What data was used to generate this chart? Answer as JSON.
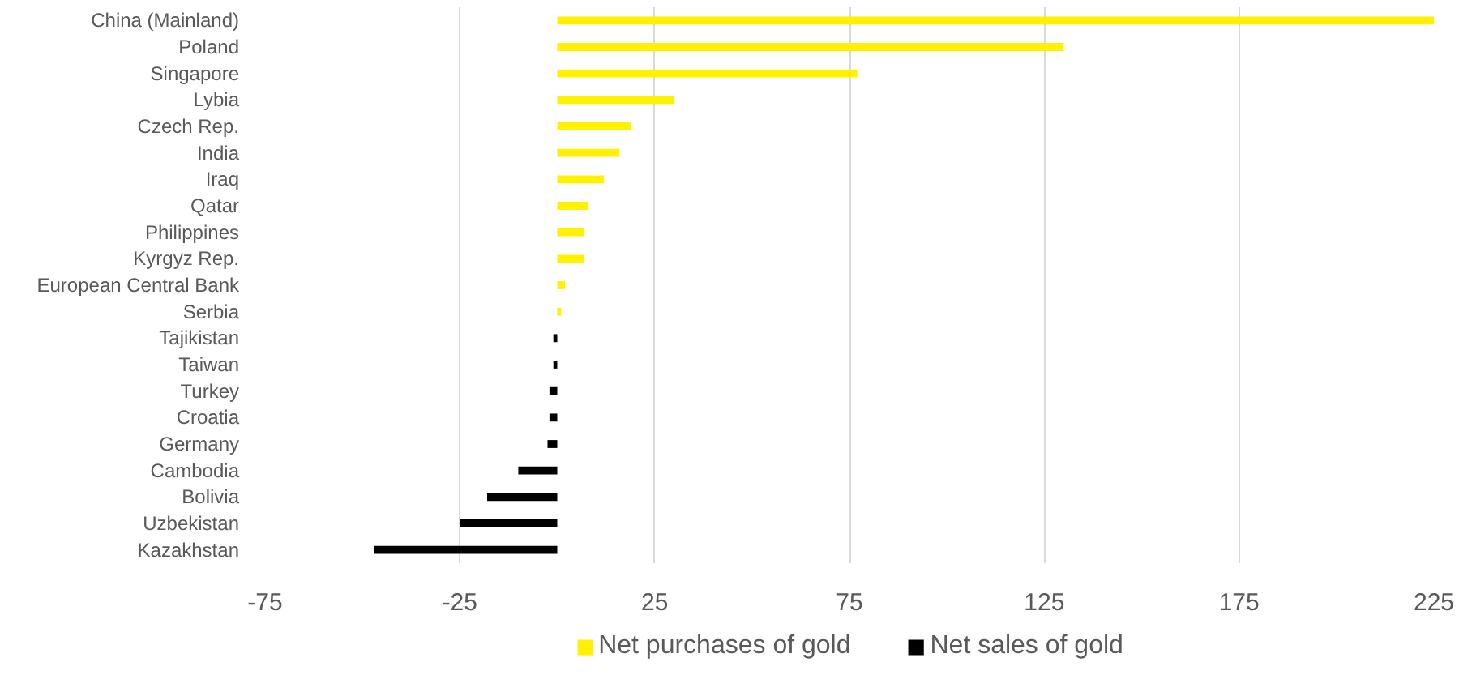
{
  "chart_data": {
    "type": "bar",
    "orientation": "horizontal",
    "stacked": true,
    "categories": [
      "China (Mainland)",
      "Poland",
      "Singapore",
      "Lybia",
      "Czech Rep.",
      "India",
      "Iraq",
      "Qatar",
      "Philippines",
      "Kyrgyz Rep.",
      "European Central Bank",
      "Serbia",
      "Tajikistan",
      "Taiwan",
      "Turkey",
      "Croatia",
      "Germany",
      "Cambodia",
      "Bolivia",
      "Uzbekistan",
      "Kazakhstan"
    ],
    "series": [
      {
        "name": "Net purchases of gold",
        "color": "#fff100",
        "values": [
          225,
          130,
          77,
          30,
          19,
          16,
          12,
          8,
          7,
          7,
          2,
          1,
          null,
          null,
          null,
          null,
          null,
          null,
          null,
          null,
          null
        ]
      },
      {
        "name": "Net sales of gold",
        "color": "#000000",
        "values": [
          null,
          null,
          null,
          null,
          null,
          null,
          null,
          null,
          null,
          null,
          null,
          null,
          -1,
          -1,
          -2,
          -2,
          -2.5,
          -10,
          -18,
          -25,
          -47
        ]
      }
    ],
    "xlim": [
      -75,
      225
    ],
    "xticks": [
      -75,
      -25,
      25,
      75,
      125,
      175,
      225
    ],
    "grid": "x",
    "legend": "bottom"
  }
}
